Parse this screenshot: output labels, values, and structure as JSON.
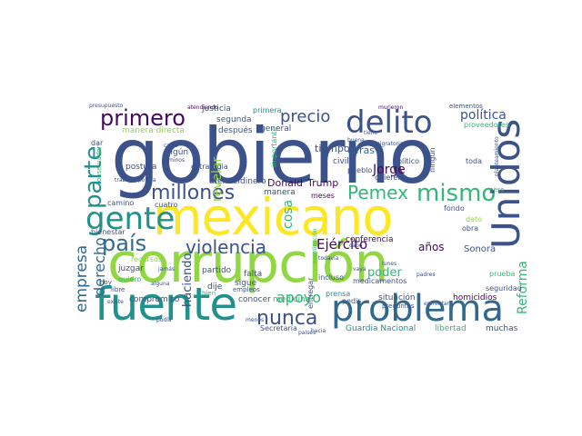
{
  "palette": {
    "dark_purple": "#46085c",
    "indigo": "#3b528b",
    "blue": "#31688e",
    "teal": "#21918c",
    "green": "#35b779",
    "lime": "#90d743",
    "yellow": "#fde725"
  },
  "words": {
    "gobierno": "gobierno",
    "corrupcion": "corrupción",
    "mexicano": "mexicano",
    "fuente": "fuente",
    "problema": "problema",
    "delito": "delito",
    "unidos": "Unidos",
    "parte": "parte",
    "gente": "gente",
    "millones": "millones",
    "primero": "primero",
    "mismo": "mismo",
    "pemex": "Pemex",
    "pais": "país",
    "violencia": "violencia",
    "empresa": "empresa",
    "derecho": "derecho",
    "nunca": "nunca",
    "precio": "precio",
    "politica": "política",
    "apoyo": "apoyo",
    "ejercito": "Ejército",
    "revelar": "revelar",
    "cosa": "cosa",
    "jorge": "Jorge",
    "donald": "Donald",
    "trump": "Trump",
    "reforma": "Reforma",
    "anos": "años",
    "sonora": "Sonora",
    "poder": "poder",
    "haciendo": "haciendo",
    "tiempo": "tiempo",
    "cifras": "cifras",
    "guardia_nacional": "Guardia Nacional",
    "libertad": "libertad",
    "muchas": "muchas",
    "homicidios": "homicidios",
    "conferencia": "conferencia",
    "situacion": "situación",
    "conocer": "conocer",
    "medicina": "medicina",
    "compromiso": "compromiso",
    "partido": "partido",
    "juzgar": "juzgar",
    "falta": "falta",
    "sigue": "sigue",
    "dije": "dije",
    "secretaria": "Secretaría",
    "manera": "manera",
    "dinero": "dinero",
    "atender": "atender",
    "seguridad": "seguridad",
    "prueba": "prueba",
    "fondo": "fondo",
    "obra": "obra",
    "dato": "dato",
    "pedir": "pedir",
    "prensa": "prensa",
    "entregar": "entregar",
    "justicia": "justicia",
    "primera": "primera",
    "segunda": "segunda",
    "despues": "después",
    "general": "general",
    "manera_directa": "manera directa",
    "estrategia": "estrategia",
    "algun": "algún",
    "postura": "postura",
    "civil": "civil",
    "pueblo": "pueblo",
    "quieren": "quieren",
    "politico": "político",
    "toda": "toda",
    "elementos": "elementos",
    "proveedores": "proveedores",
    "bienestar": "bienestar",
    "camino": "camino",
    "cuatro": "cuatro",
    "meses": "meses",
    "incluso": "incluso",
    "medicamentos": "medicamentos",
    "recursos": "recursos",
    "quiero": "quiero",
    "libre": "libre",
    "empleos": "empleos",
    "bien": "bien",
    "importante": "importante",
    "conservador": "conservador",
    "dar": "dar",
    "hoy": "hoy",
    "ningun": "ningún",
    "preguntas": "preguntas",
    "lunes": "lunes",
    "padres": "padres",
    "vaya": "vaya",
    "presupuesto": "presupuesto",
    "atendiendo": "atendiendo",
    "murieron": "murieron",
    "migratoria": "migratoria",
    "buena": "buena",
    "planteamiento": "planteamiento",
    "peso": "peso",
    "coordinacion": "coordinación",
    "todavia": "todavía",
    "jamas": "jamás",
    "alguna": "alguna",
    "podia": "podía",
    "existe": "existe",
    "menos": "menos",
    "hacia": "hacia",
    "enfrentar": "enfrentar",
    "paises": "países",
    "trabajo": "trabajo",
    "policia": "policía",
    "cabo": "cabo",
    "tiene": "tiene",
    "carta": "carta",
    "caminos": "caminos"
  }
}
